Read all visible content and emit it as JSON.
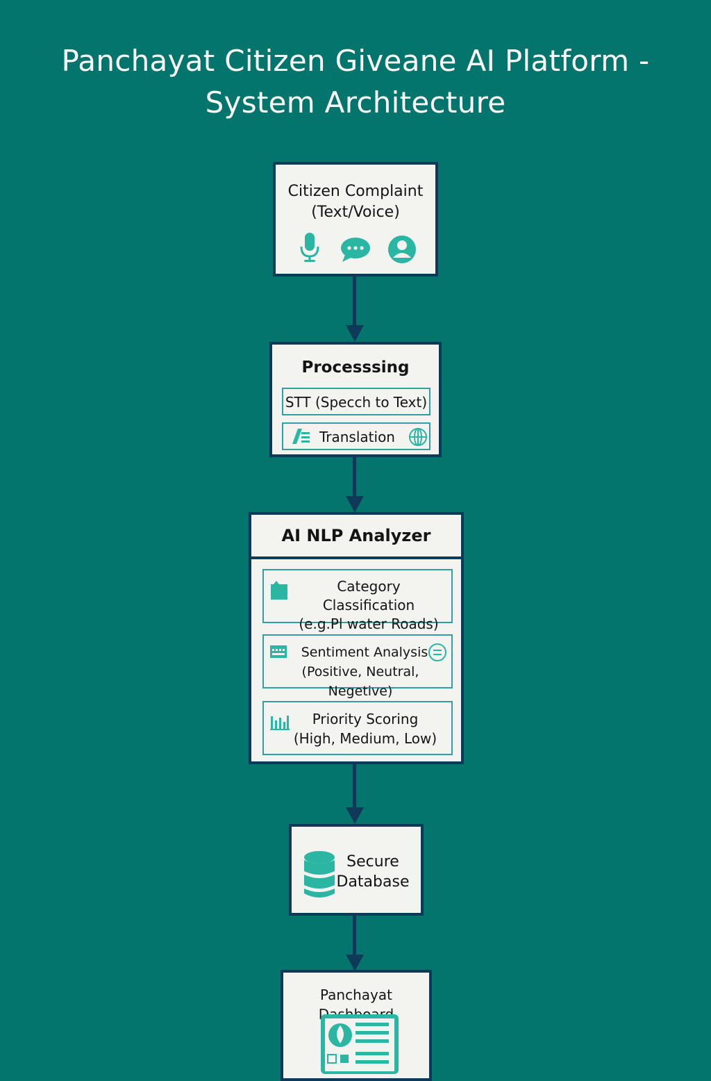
{
  "title": {
    "line1": "Panchayat Citizen Giveane AI Platform -",
    "line2": "System Architecture"
  },
  "complaint": {
    "line1": "Citizen Complaint",
    "line2": "(Text/Voice)",
    "icons": [
      "microphone-icon",
      "chat-bubble-icon",
      "user-icon"
    ]
  },
  "processing": {
    "title": "Processsing",
    "stt": "STT (Specch to Text)",
    "translation": "Translation"
  },
  "analyzer": {
    "title": "AI NLP Analyzer",
    "category_line1": "Category Classification",
    "category_line2": "(e.g.Pl water Roads)",
    "sentiment_line1": "Sentiment Analysis",
    "sentiment_line2": "(Positive, Neutral, Negetive)",
    "priority_line1": "Priority Scoring",
    "priority_line2": "(High, Medium, Low)"
  },
  "database": {
    "line1": "Secure",
    "line2": "Database"
  },
  "dashboard": {
    "title": "Panchayat Dashboard"
  },
  "colors": {
    "background": "#03756c",
    "box_border": "#0e3a59",
    "accent": "#2bb5a3"
  }
}
